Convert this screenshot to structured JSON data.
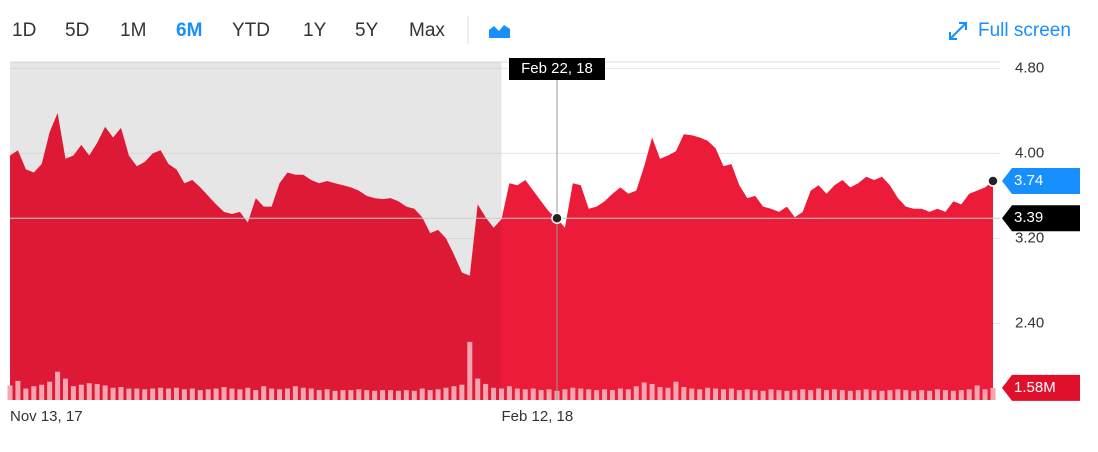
{
  "toolbar": {
    "ranges": [
      {
        "label": "1D"
      },
      {
        "label": "5D"
      },
      {
        "label": "1M"
      },
      {
        "label": "6M",
        "selected": true
      },
      {
        "label": "YTD"
      },
      {
        "label": "1Y"
      },
      {
        "label": "5Y"
      },
      {
        "label": "Max"
      }
    ],
    "fullscreen": "Full screen"
  },
  "chart_data": {
    "type": "area",
    "categories": [
      "Nov 13, 17",
      null,
      null,
      null,
      null,
      null,
      null,
      null,
      null,
      null,
      null,
      null,
      null,
      null,
      null,
      null,
      null,
      null,
      null,
      null,
      null,
      null,
      null,
      null,
      null,
      null,
      null,
      null,
      null,
      null,
      null,
      null,
      null,
      null,
      null,
      null,
      null,
      null,
      null,
      null,
      null,
      null,
      null,
      null,
      null,
      null,
      null,
      null,
      null,
      null,
      null,
      null,
      null,
      null,
      null,
      null,
      null,
      null,
      null,
      null,
      null,
      null,
      "Feb 12, 18",
      null,
      null,
      null,
      null,
      null,
      null,
      null,
      null,
      null,
      null,
      null,
      null,
      null,
      null,
      null,
      null,
      null,
      null,
      null,
      null,
      null,
      null,
      null,
      null,
      null,
      null,
      null,
      null,
      null,
      null,
      null,
      null,
      null,
      null,
      null,
      null,
      null,
      null,
      null,
      null,
      null,
      null,
      null,
      null,
      null,
      null,
      null,
      null,
      null,
      null,
      null,
      null,
      null,
      null,
      null,
      null,
      null,
      null,
      null,
      null,
      null,
      null
    ],
    "series": [
      {
        "color": "#ec1b3a",
        "values": [
          3.98,
          4.03,
          3.85,
          3.82,
          3.9,
          4.2,
          4.38,
          3.95,
          3.98,
          4.08,
          3.98,
          4.1,
          4.25,
          4.15,
          4.24,
          3.98,
          3.88,
          3.92,
          4.0,
          4.03,
          3.9,
          3.85,
          3.72,
          3.75,
          3.68,
          3.6,
          3.52,
          3.45,
          3.43,
          3.45,
          3.35,
          3.58,
          3.5,
          3.5,
          3.72,
          3.82,
          3.8,
          3.8,
          3.75,
          3.72,
          3.74,
          3.72,
          3.7,
          3.68,
          3.65,
          3.6,
          3.58,
          3.57,
          3.58,
          3.55,
          3.5,
          3.48,
          3.4,
          3.25,
          3.28,
          3.2,
          3.05,
          2.88,
          2.85,
          3.52,
          3.4,
          3.3,
          3.38,
          3.72,
          3.7,
          3.75,
          3.65,
          3.55,
          3.45,
          3.39,
          3.3,
          3.72,
          3.7,
          3.48,
          3.5,
          3.55,
          3.62,
          3.68,
          3.62,
          3.65,
          3.88,
          4.15,
          3.95,
          3.98,
          4.02,
          4.18,
          4.17,
          4.15,
          4.12,
          4.05,
          3.88,
          3.9,
          3.7,
          3.58,
          3.6,
          3.5,
          3.48,
          3.45,
          3.5,
          3.4,
          3.45,
          3.65,
          3.7,
          3.62,
          3.7,
          3.75,
          3.68,
          3.72,
          3.78,
          3.75,
          3.78,
          3.7,
          3.58,
          3.5,
          3.48,
          3.48,
          3.45,
          3.48,
          3.45,
          3.55,
          3.52,
          3.62,
          3.65,
          3.68,
          3.74
        ]
      }
    ],
    "ylim": [
      1.68,
      4.86
    ],
    "yticks": [
      {
        "value": 4.8,
        "label": "4.80"
      },
      {
        "value": 4,
        "label": "4.00"
      },
      {
        "value": 3.2,
        "label": "3.20"
      },
      {
        "value": 2.4,
        "label": "2.40"
      }
    ],
    "grid": true,
    "volume": {
      "color": "#f4a5b0",
      "ylim": [
        0,
        17
      ],
      "values": [
        1.9,
        2.5,
        1.5,
        1.8,
        2.0,
        2.4,
        3.7,
        2.8,
        1.8,
        2.0,
        2.2,
        2.1,
        1.9,
        1.6,
        1.7,
        1.5,
        1.5,
        1.4,
        1.5,
        1.6,
        1.5,
        1.6,
        1.4,
        1.5,
        1.3,
        1.4,
        1.5,
        1.7,
        1.5,
        1.4,
        1.6,
        1.3,
        1.8,
        1.5,
        1.4,
        1.5,
        1.8,
        1.6,
        1.5,
        1.3,
        1.4,
        1.2,
        1.3,
        1.3,
        1.4,
        1.3,
        1.2,
        1.3,
        1.3,
        1.2,
        1.3,
        1.2,
        1.5,
        1.3,
        1.4,
        1.6,
        1.8,
        2.0,
        7.6,
        2.8,
        2.1,
        1.6,
        1.5,
        1.8,
        1.5,
        1.4,
        1.5,
        1.3,
        1.4,
        1.2,
        1.4,
        1.6,
        1.5,
        1.4,
        1.3,
        1.4,
        1.3,
        1.5,
        1.4,
        1.8,
        2.3,
        2.1,
        1.7,
        1.6,
        2.4,
        1.7,
        1.5,
        1.4,
        1.6,
        1.5,
        1.4,
        1.5,
        1.3,
        1.4,
        1.3,
        1.2,
        1.4,
        1.3,
        1.2,
        1.3,
        1.4,
        1.3,
        1.5,
        1.3,
        1.4,
        1.3,
        1.2,
        1.3,
        1.4,
        1.3,
        1.2,
        1.3,
        1.4,
        1.3,
        1.2,
        1.3,
        1.2,
        1.4,
        1.3,
        1.2,
        1.3,
        1.4,
        1.9,
        1.4,
        1.58
      ],
      "value_labels": [
        null,
        null,
        null,
        null,
        null,
        null,
        null,
        null,
        null,
        null,
        null,
        null,
        null,
        null,
        null,
        null,
        null,
        null,
        null,
        null,
        null,
        null,
        null,
        null,
        null,
        null,
        null,
        null,
        null,
        null,
        null,
        null,
        null,
        null,
        null,
        null,
        null,
        null,
        null,
        null,
        null,
        null,
        null,
        null,
        null,
        null,
        null,
        null,
        null,
        null,
        null,
        null,
        null,
        null,
        null,
        null,
        null,
        null,
        null,
        null,
        null,
        null,
        null,
        null,
        null,
        null,
        null,
        null,
        null,
        null,
        null,
        null,
        null,
        null,
        null,
        null,
        null,
        null,
        null,
        null,
        null,
        null,
        null,
        null,
        null,
        null,
        null,
        null,
        null,
        null,
        null,
        null,
        null,
        null,
        null,
        null,
        null,
        null,
        null,
        null,
        null,
        null,
        null,
        null,
        null,
        null,
        null,
        null,
        null,
        null,
        null,
        null,
        null,
        null,
        null,
        null,
        null,
        null,
        null,
        null,
        null,
        null,
        null,
        null,
        "1.58M"
      ]
    },
    "tooltip": {
      "date": "Feb 22, 18",
      "value": 3.39,
      "value_label": "3.39"
    }
  }
}
